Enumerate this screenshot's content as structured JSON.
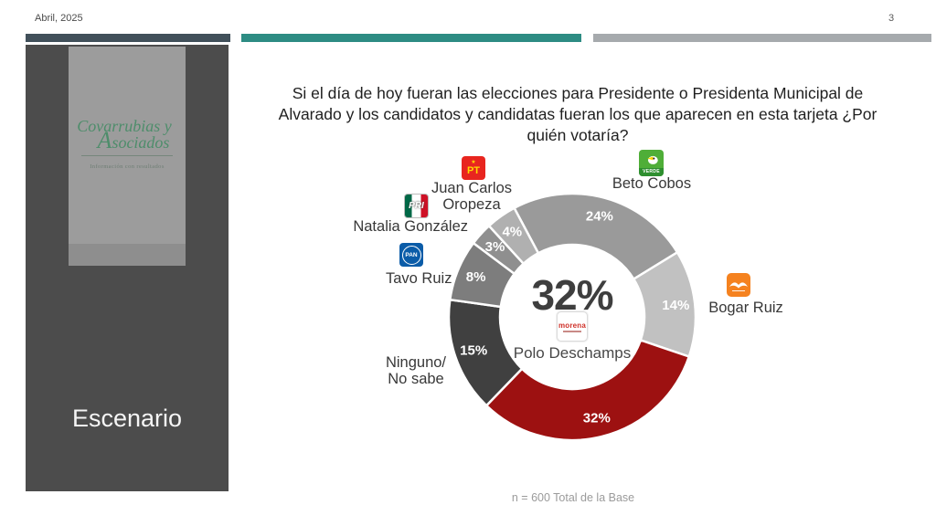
{
  "header": {
    "date": "Abril, 2025",
    "page_number": "3"
  },
  "sidebar": {
    "logo": {
      "line1": "Covarrubias y",
      "line2": "Asociados",
      "tagline": "Información con resultados"
    },
    "scenario_label": "Escenario"
  },
  "question": {
    "lines": [
      "Si el día de hoy fueran las elecciones para Presidente o Presidenta Municipal de",
      "Alvarado y los candidatos y candidatas fueran los que aparecen en esta tarjeta ¿Por",
      "quién votaría?"
    ]
  },
  "labels": {
    "pt_candidate": "Juan Carlos Oropeza",
    "pri_candidate": "Natalia González",
    "pan_candidate": "Tavo Ruiz",
    "pvem_candidate": "Beto Cobos",
    "mc_candidate": "Bogar Ruiz",
    "none_label": "Ninguno/ No sabe"
  },
  "party_icons": {
    "pt": "PT",
    "pri": "PRI",
    "pan": "PAN",
    "pvem": "VERDE",
    "mc": "Movimiento Ciudadano",
    "morena": "morena"
  },
  "donut_center": {
    "value": "32%",
    "candidate": "Polo Deschamps",
    "party": "morena"
  },
  "footnote": "n = 600 Total de la Base",
  "chart_data": {
    "type": "donut",
    "title": "Si el día de hoy fueran las elecciones para Presidente o Presidenta Municipal de Alvarado y los candidatos y candidatas fueran los que aparecen en esta tarjeta ¿Por quién votaría?",
    "base_note": "n = 600 Total de la Base",
    "start_angle_deg": -28,
    "outer_radius": 135,
    "inner_radius": 79,
    "label_radius": 114,
    "center_label": {
      "value": "32%",
      "candidate": "Polo Deschamps",
      "party": "Morena"
    },
    "segments": [
      {
        "label": "Beto Cobos",
        "party": "PVEM",
        "value": 24,
        "color": "#9a9a9a"
      },
      {
        "label": "Bogar Ruiz",
        "party": "MC",
        "value": 14,
        "color": "#c1c1c1"
      },
      {
        "label": "Polo Deschamps",
        "party": "Morena",
        "value": 32,
        "color": "#9d1111"
      },
      {
        "label": "Ninguno/No sabe",
        "party": "",
        "value": 15,
        "color": "#404040"
      },
      {
        "label": "Tavo Ruiz",
        "party": "PAN",
        "value": 8,
        "color": "#7d7d7d"
      },
      {
        "label": "Natalia González",
        "party": "PRI",
        "value": 3,
        "color": "#8f8f8f"
      },
      {
        "label": "Juan Carlos Oropeza",
        "party": "PT",
        "value": 4,
        "color": "#b0b0b0"
      }
    ]
  }
}
